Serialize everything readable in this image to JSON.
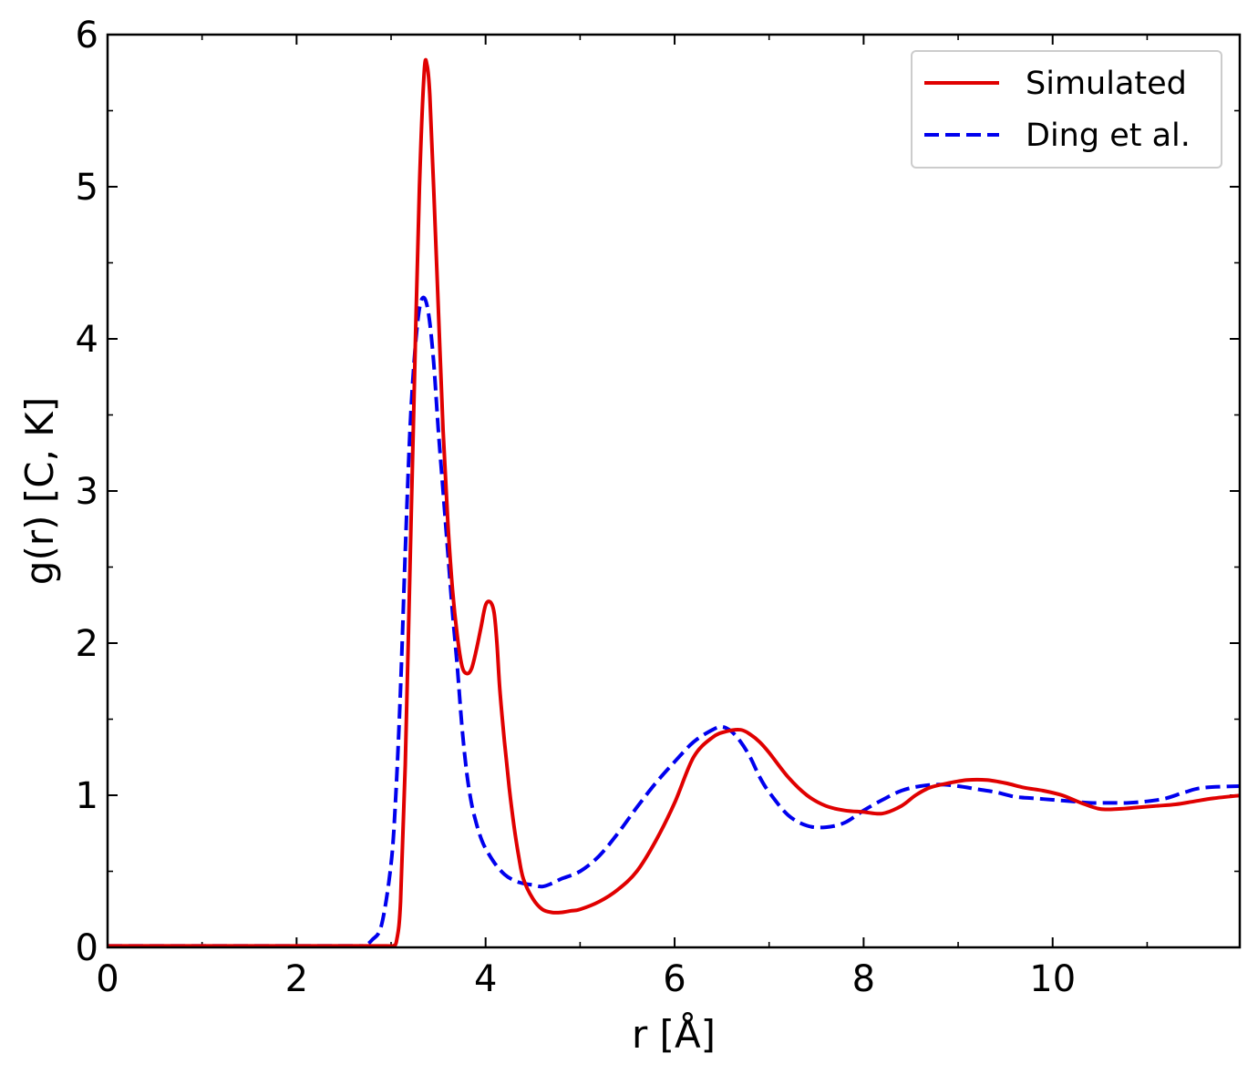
{
  "chart_data": {
    "type": "line",
    "xlabel": "r [Å]",
    "ylabel": "g(r) [C, K]",
    "xlim": [
      0,
      12
    ],
    "ylim": [
      0,
      6
    ],
    "x_ticks": [
      0,
      2,
      4,
      6,
      8,
      10
    ],
    "y_ticks": [
      0,
      1,
      2,
      3,
      4,
      5,
      6
    ],
    "tick_labels_x": [
      "0",
      "2",
      "4",
      "6",
      "8",
      "10"
    ],
    "tick_labels_y": [
      "0",
      "1",
      "2",
      "3",
      "4",
      "5",
      "6"
    ],
    "grid": false,
    "legend_position": "top-right",
    "series": [
      {
        "name": "Simulated",
        "color": "#e00000",
        "style": "solid",
        "x": [
          0,
          2.5,
          2.95,
          3.02,
          3.06,
          3.1,
          3.15,
          3.2,
          3.25,
          3.3,
          3.35,
          3.38,
          3.41,
          3.45,
          3.5,
          3.55,
          3.6,
          3.65,
          3.7,
          3.75,
          3.8,
          3.85,
          3.9,
          3.95,
          4.0,
          4.05,
          4.09,
          4.12,
          4.15,
          4.2,
          4.25,
          4.3,
          4.35,
          4.4,
          4.5,
          4.6,
          4.7,
          4.8,
          4.9,
          5.0,
          5.2,
          5.4,
          5.6,
          5.8,
          6.0,
          6.2,
          6.4,
          6.55,
          6.7,
          6.8,
          6.9,
          7.0,
          7.2,
          7.4,
          7.6,
          7.8,
          8.0,
          8.2,
          8.4,
          8.55,
          8.7,
          8.9,
          9.1,
          9.3,
          9.5,
          9.7,
          9.9,
          10.1,
          10.3,
          10.5,
          10.7,
          10.9,
          11.1,
          11.3,
          11.5,
          11.7,
          12.0
        ],
        "y": [
          0.01,
          0.01,
          0.01,
          0.01,
          0.05,
          0.3,
          1.2,
          2.5,
          3.8,
          5.0,
          5.75,
          5.8,
          5.6,
          5.0,
          4.2,
          3.4,
          2.8,
          2.35,
          2.05,
          1.85,
          1.8,
          1.83,
          1.95,
          2.1,
          2.25,
          2.27,
          2.2,
          2.0,
          1.7,
          1.35,
          1.05,
          0.8,
          0.6,
          0.45,
          0.32,
          0.25,
          0.23,
          0.23,
          0.24,
          0.25,
          0.3,
          0.38,
          0.5,
          0.7,
          0.95,
          1.25,
          1.38,
          1.42,
          1.43,
          1.4,
          1.35,
          1.28,
          1.12,
          1.0,
          0.93,
          0.9,
          0.89,
          0.88,
          0.93,
          1.0,
          1.05,
          1.08,
          1.1,
          1.1,
          1.08,
          1.05,
          1.03,
          1.0,
          0.95,
          0.91,
          0.91,
          0.92,
          0.93,
          0.94,
          0.96,
          0.98,
          1.0
        ]
      },
      {
        "name": "Ding et al.",
        "color": "#0000ee",
        "style": "dashed",
        "x": [
          0,
          2.5,
          2.7,
          2.8,
          2.9,
          3.0,
          3.05,
          3.1,
          3.15,
          3.2,
          3.25,
          3.3,
          3.35,
          3.4,
          3.45,
          3.5,
          3.55,
          3.6,
          3.65,
          3.7,
          3.75,
          3.8,
          3.85,
          3.9,
          3.95,
          4.0,
          4.1,
          4.2,
          4.3,
          4.4,
          4.5,
          4.6,
          4.7,
          4.8,
          5.0,
          5.2,
          5.4,
          5.6,
          5.8,
          6.0,
          6.2,
          6.4,
          6.5,
          6.6,
          6.7,
          6.8,
          6.9,
          7.0,
          7.2,
          7.4,
          7.6,
          7.8,
          8.0,
          8.2,
          8.4,
          8.6,
          8.8,
          9.0,
          9.2,
          9.4,
          9.6,
          9.8,
          10.0,
          10.2,
          10.4,
          10.6,
          10.8,
          11.0,
          11.2,
          11.4,
          11.6,
          12.0
        ],
        "y": [
          0.01,
          0.01,
          0.01,
          0.05,
          0.15,
          0.55,
          1.0,
          1.7,
          2.6,
          3.4,
          3.9,
          4.2,
          4.27,
          4.15,
          3.85,
          3.4,
          3.0,
          2.6,
          2.2,
          1.85,
          1.45,
          1.15,
          0.95,
          0.82,
          0.72,
          0.65,
          0.55,
          0.48,
          0.44,
          0.42,
          0.41,
          0.4,
          0.42,
          0.45,
          0.5,
          0.6,
          0.75,
          0.92,
          1.08,
          1.22,
          1.35,
          1.43,
          1.45,
          1.42,
          1.35,
          1.25,
          1.12,
          1.02,
          0.87,
          0.8,
          0.79,
          0.82,
          0.9,
          0.97,
          1.03,
          1.06,
          1.07,
          1.06,
          1.04,
          1.02,
          0.99,
          0.98,
          0.97,
          0.96,
          0.95,
          0.95,
          0.95,
          0.96,
          0.98,
          1.02,
          1.05,
          1.06
        ]
      }
    ]
  }
}
